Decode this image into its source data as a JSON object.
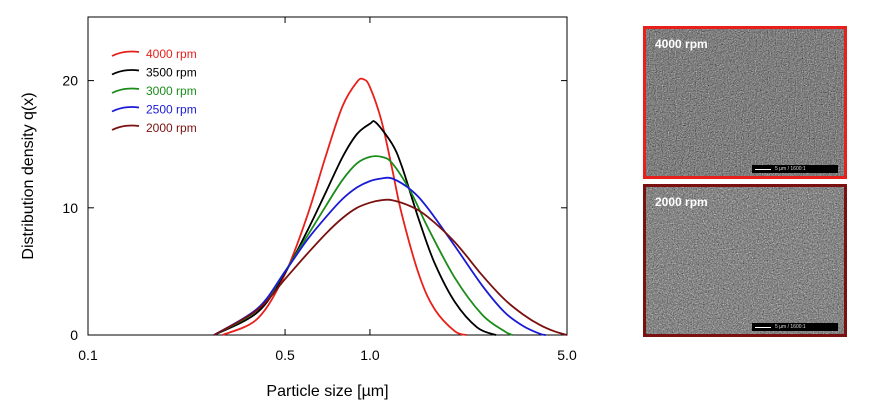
{
  "chart_data": {
    "type": "line",
    "xscale": "log",
    "xlim": [
      0.1,
      5.0
    ],
    "ylim": [
      0,
      25
    ],
    "xticks": [
      {
        "value": 0.1,
        "label": "0.1"
      },
      {
        "value": 0.5,
        "label": "0.5"
      },
      {
        "value": 1.0,
        "label": "1.0"
      },
      {
        "value": 5.0,
        "label": "5.0"
      }
    ],
    "yticks": [
      {
        "value": 0,
        "label": "0"
      },
      {
        "value": 10,
        "label": "10"
      },
      {
        "value": 20,
        "label": "20"
      }
    ],
    "xlabel": "Particle size [µm]",
    "ylabel": "Distribution density q(x)",
    "legend_position": "top-left",
    "grid": false,
    "series": [
      {
        "name": "4000 rpm",
        "color": "#e8201c",
        "points": [
          [
            0.3,
            0
          ],
          [
            0.4,
            1.3
          ],
          [
            0.5,
            4.8
          ],
          [
            0.6,
            9.4
          ],
          [
            0.7,
            14.2
          ],
          [
            0.8,
            18.0
          ],
          [
            0.9,
            19.9
          ],
          [
            0.95,
            20.1
          ],
          [
            1.0,
            19.5
          ],
          [
            1.1,
            16.8
          ],
          [
            1.2,
            13.0
          ],
          [
            1.3,
            9.4
          ],
          [
            1.5,
            4.6
          ],
          [
            1.7,
            2.0
          ],
          [
            2.0,
            0.3
          ],
          [
            2.2,
            0
          ]
        ]
      },
      {
        "name": "3500 rpm",
        "color": "#000000",
        "points": [
          [
            0.28,
            0
          ],
          [
            0.4,
            1.8
          ],
          [
            0.5,
            4.9
          ],
          [
            0.6,
            8.2
          ],
          [
            0.7,
            11.3
          ],
          [
            0.8,
            14.0
          ],
          [
            0.9,
            15.8
          ],
          [
            1.0,
            16.6
          ],
          [
            1.05,
            16.7
          ],
          [
            1.2,
            15.0
          ],
          [
            1.3,
            13.2
          ],
          [
            1.5,
            8.9
          ],
          [
            1.7,
            5.6
          ],
          [
            2.0,
            2.6
          ],
          [
            2.4,
            0.6
          ],
          [
            2.8,
            0
          ]
        ]
      },
      {
        "name": "3000 rpm",
        "color": "#1a8c1a",
        "points": [
          [
            0.28,
            0
          ],
          [
            0.4,
            2.0
          ],
          [
            0.5,
            5.0
          ],
          [
            0.6,
            7.8
          ],
          [
            0.7,
            10.2
          ],
          [
            0.8,
            12.2
          ],
          [
            0.9,
            13.5
          ],
          [
            1.0,
            14.0
          ],
          [
            1.1,
            14.0
          ],
          [
            1.2,
            13.5
          ],
          [
            1.4,
            11.2
          ],
          [
            1.6,
            8.5
          ],
          [
            2.0,
            4.5
          ],
          [
            2.5,
            1.6
          ],
          [
            3.0,
            0.3
          ],
          [
            3.2,
            0
          ]
        ]
      },
      {
        "name": "2500 rpm",
        "color": "#1a1ad6",
        "points": [
          [
            0.28,
            0
          ],
          [
            0.4,
            2.1
          ],
          [
            0.5,
            5.0
          ],
          [
            0.6,
            7.5
          ],
          [
            0.7,
            9.3
          ],
          [
            0.8,
            10.7
          ],
          [
            0.9,
            11.6
          ],
          [
            1.0,
            12.1
          ],
          [
            1.1,
            12.3
          ],
          [
            1.2,
            12.3
          ],
          [
            1.4,
            11.4
          ],
          [
            1.6,
            10.0
          ],
          [
            2.0,
            7.0
          ],
          [
            2.5,
            3.9
          ],
          [
            3.0,
            1.8
          ],
          [
            3.5,
            0.7
          ],
          [
            4.0,
            0.1
          ],
          [
            4.2,
            0
          ]
        ]
      },
      {
        "name": "2000 rpm",
        "color": "#7a1010",
        "points": [
          [
            0.28,
            0
          ],
          [
            0.4,
            2.0
          ],
          [
            0.5,
            4.4
          ],
          [
            0.6,
            6.4
          ],
          [
            0.7,
            8.0
          ],
          [
            0.8,
            9.2
          ],
          [
            0.9,
            10.0
          ],
          [
            1.0,
            10.4
          ],
          [
            1.1,
            10.6
          ],
          [
            1.2,
            10.6
          ],
          [
            1.4,
            10.1
          ],
          [
            1.6,
            9.3
          ],
          [
            2.0,
            7.3
          ],
          [
            2.5,
            4.7
          ],
          [
            3.0,
            2.8
          ],
          [
            3.5,
            1.6
          ],
          [
            4.0,
            0.8
          ],
          [
            4.5,
            0.3
          ],
          [
            5.0,
            0
          ]
        ]
      }
    ]
  },
  "sem_images": [
    {
      "label": "4000 rpm",
      "border_color": "#e8201c",
      "scale_text": "5 µm / 1600:1"
    },
    {
      "label": "2000 rpm",
      "border_color": "#7a1010",
      "scale_text": "5 µm / 1600:1"
    }
  ]
}
